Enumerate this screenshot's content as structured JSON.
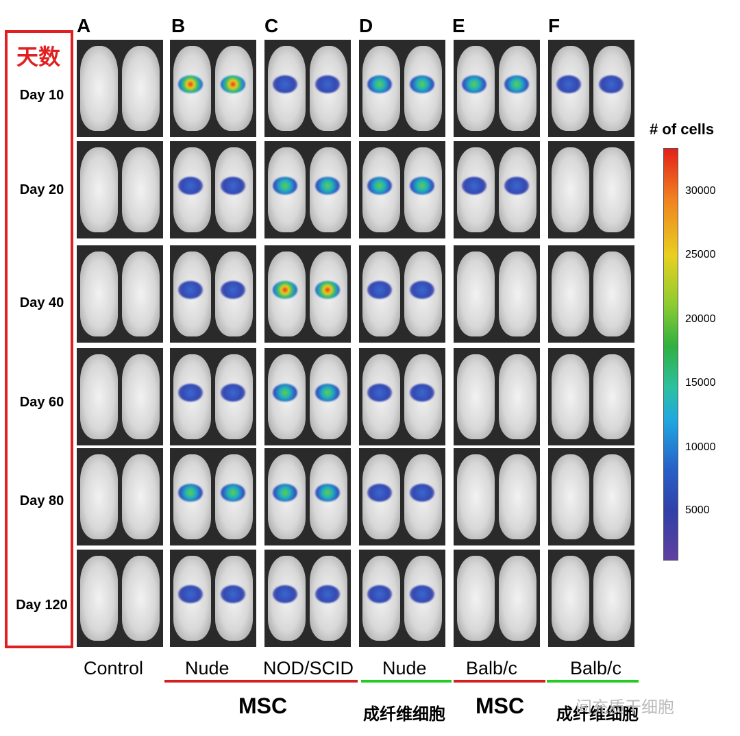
{
  "row_header": "天数",
  "days": [
    "Day 10",
    "Day 20",
    "Day 40",
    "Day 60",
    "Day 80",
    "Day 120"
  ],
  "columns": [
    {
      "letter": "A",
      "strain": "Control"
    },
    {
      "letter": "B",
      "strain": "Nude"
    },
    {
      "letter": "C",
      "strain": "NOD/SCID"
    },
    {
      "letter": "D",
      "strain": "Nude"
    },
    {
      "letter": "E",
      "strain": "Balb/c"
    },
    {
      "letter": "F",
      "strain": "Balb/c"
    }
  ],
  "groups": [
    {
      "label": "MSC",
      "bold": true
    },
    {
      "label": "成纤维细胞"
    },
    {
      "label": "MSC",
      "bold": true
    },
    {
      "label": "成纤维细胞"
    }
  ],
  "colorbar": {
    "title": "# of cells",
    "ticks": [
      "30000",
      "25000",
      "20000",
      "15000",
      "10000",
      "5000"
    ]
  },
  "watermark": "间充质干细胞",
  "colors": {
    "red_underline": "#d42020",
    "green_underline": "#22cc22",
    "box": "#e02020"
  }
}
